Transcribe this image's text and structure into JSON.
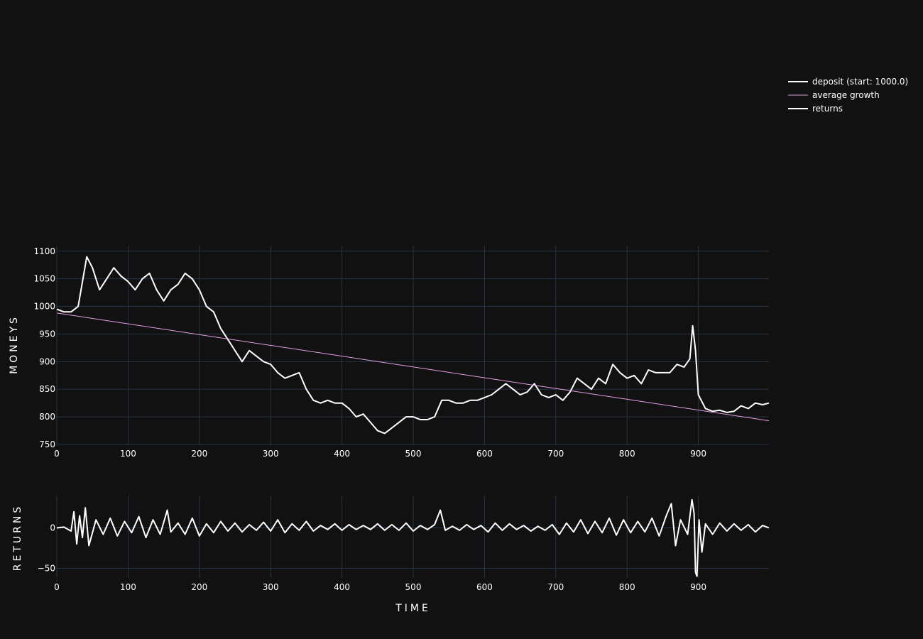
{
  "theme": {
    "background": "#111111",
    "grid_color": "#283442",
    "line_color": "#ffffff",
    "trend_color": "#e0a0e0"
  },
  "chart_data": [
    {
      "type": "line",
      "xlabel": "",
      "ylabel": "MONEYS",
      "xlim": [
        0,
        999
      ],
      "ylim": [
        750,
        1110
      ],
      "x_ticks": [
        0,
        100,
        200,
        300,
        400,
        500,
        600,
        700,
        800,
        900
      ],
      "y_ticks": [
        750,
        800,
        850,
        900,
        950,
        1000,
        1050,
        1100
      ],
      "grid": true,
      "legend_position": "top-right",
      "series": [
        {
          "name": "deposit (start: 1000.0)",
          "color": "#ffffff",
          "x": [
            0,
            10,
            20,
            30,
            38,
            42,
            50,
            60,
            70,
            80,
            90,
            100,
            110,
            120,
            130,
            140,
            150,
            160,
            170,
            180,
            190,
            200,
            210,
            220,
            230,
            240,
            250,
            260,
            270,
            280,
            290,
            300,
            310,
            320,
            330,
            340,
            350,
            360,
            370,
            380,
            390,
            400,
            410,
            420,
            430,
            440,
            450,
            460,
            470,
            480,
            490,
            500,
            510,
            520,
            530,
            540,
            550,
            560,
            570,
            580,
            590,
            600,
            610,
            620,
            630,
            640,
            650,
            660,
            670,
            680,
            690,
            700,
            710,
            720,
            730,
            740,
            750,
            760,
            770,
            780,
            790,
            800,
            810,
            820,
            830,
            840,
            850,
            860,
            870,
            880,
            888,
            892,
            896,
            900,
            910,
            920,
            930,
            940,
            950,
            960,
            970,
            980,
            990,
            999
          ],
          "y": [
            995,
            990,
            990,
            1000,
            1060,
            1090,
            1070,
            1030,
            1050,
            1070,
            1055,
            1045,
            1030,
            1050,
            1060,
            1030,
            1010,
            1030,
            1040,
            1060,
            1050,
            1030,
            1000,
            990,
            960,
            940,
            920,
            900,
            920,
            910,
            900,
            895,
            880,
            870,
            875,
            880,
            850,
            830,
            825,
            830,
            825,
            825,
            815,
            800,
            805,
            790,
            775,
            770,
            780,
            790,
            800,
            800,
            795,
            795,
            800,
            830,
            830,
            825,
            825,
            830,
            830,
            835,
            840,
            850,
            860,
            850,
            840,
            845,
            860,
            840,
            835,
            840,
            830,
            845,
            870,
            860,
            850,
            870,
            860,
            895,
            880,
            870,
            875,
            860,
            885,
            880,
            880,
            880,
            895,
            890,
            905,
            965,
            920,
            840,
            815,
            810,
            812,
            808,
            810,
            820,
            815,
            825,
            822,
            825
          ]
        },
        {
          "name": "average growth",
          "color": "#e0a0e0",
          "x": [
            0,
            999
          ],
          "y": [
            988,
            793
          ]
        }
      ]
    },
    {
      "type": "line",
      "xlabel": "TIME",
      "ylabel": "RETURNS",
      "xlim": [
        0,
        999
      ],
      "ylim": [
        -62,
        40
      ],
      "x_ticks": [
        0,
        100,
        200,
        300,
        400,
        500,
        600,
        700,
        800,
        900
      ],
      "y_ticks": [
        -50,
        0
      ],
      "grid": true,
      "series": [
        {
          "name": "returns",
          "color": "#ffffff",
          "x": [
            0,
            10,
            20,
            24,
            28,
            32,
            36,
            40,
            45,
            55,
            65,
            75,
            85,
            95,
            105,
            115,
            125,
            135,
            145,
            155,
            160,
            170,
            180,
            190,
            200,
            210,
            220,
            230,
            240,
            250,
            260,
            270,
            280,
            290,
            300,
            310,
            320,
            330,
            340,
            350,
            360,
            370,
            380,
            390,
            400,
            410,
            420,
            430,
            440,
            450,
            460,
            470,
            480,
            490,
            500,
            510,
            520,
            530,
            538,
            545,
            555,
            565,
            575,
            585,
            595,
            605,
            615,
            625,
            635,
            645,
            655,
            665,
            675,
            685,
            695,
            705,
            715,
            725,
            735,
            745,
            755,
            765,
            775,
            785,
            795,
            805,
            815,
            825,
            835,
            845,
            855,
            862,
            868,
            875,
            885,
            891,
            894,
            896,
            898,
            901,
            905,
            910,
            920,
            930,
            940,
            950,
            960,
            970,
            980,
            990,
            999
          ],
          "y": [
            0,
            1,
            -4,
            20,
            -20,
            15,
            -12,
            25,
            -22,
            10,
            -8,
            12,
            -10,
            8,
            -6,
            14,
            -12,
            10,
            -8,
            22,
            -5,
            6,
            -8,
            12,
            -10,
            5,
            -6,
            8,
            -4,
            6,
            -5,
            4,
            -3,
            7,
            -4,
            10,
            -6,
            5,
            -3,
            8,
            -4,
            3,
            -2,
            5,
            -3,
            4,
            -2,
            3,
            -2,
            5,
            -3,
            4,
            -3,
            6,
            -4,
            3,
            -2,
            4,
            22,
            -3,
            2,
            -3,
            4,
            -2,
            3,
            -5,
            6,
            -3,
            5,
            -2,
            3,
            -4,
            2,
            -3,
            4,
            -8,
            6,
            -5,
            10,
            -7,
            8,
            -6,
            12,
            -9,
            10,
            -6,
            8,
            -5,
            12,
            -10,
            15,
            30,
            -22,
            10,
            -8,
            35,
            18,
            -55,
            -60,
            10,
            -30,
            5,
            -8,
            6,
            -4,
            5,
            -3,
            4,
            -5,
            3,
            0
          ]
        }
      ]
    }
  ],
  "legend": [
    {
      "label": "deposit (start: 1000.0)",
      "color": "#ffffff",
      "width": 2
    },
    {
      "label": "average growth",
      "color": "#e0a0e0",
      "width": 1
    },
    {
      "label": "returns",
      "color": "#ffffff",
      "width": 2
    }
  ]
}
